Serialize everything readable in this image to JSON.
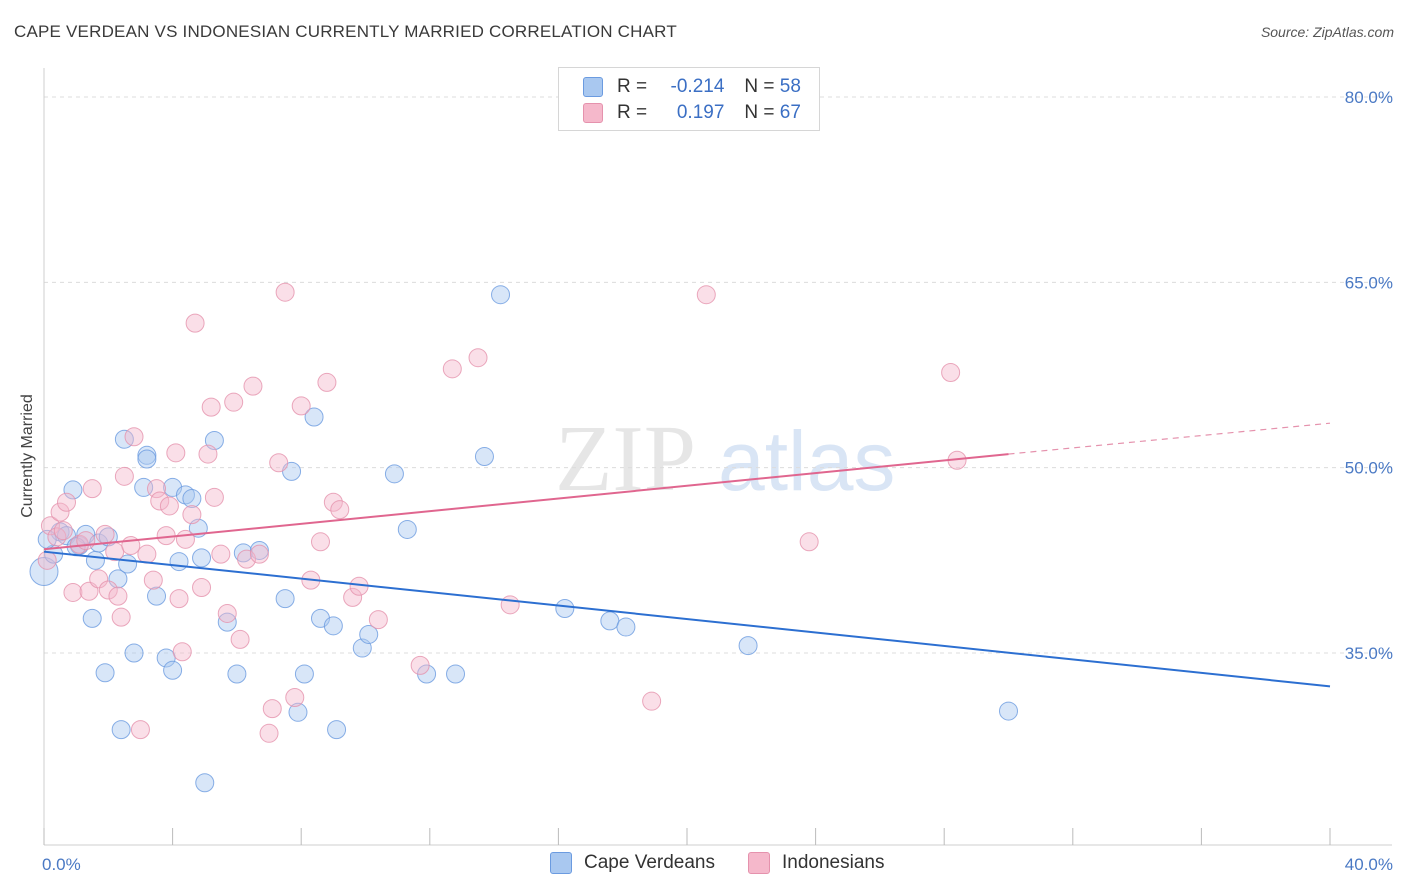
{
  "header": {
    "title": "CAPE VERDEAN VS INDONESIAN CURRENTLY MARRIED CORRELATION CHART",
    "source": "Source: ZipAtlas.com"
  },
  "watermark": {
    "part1": "ZIP",
    "part2": "atlas"
  },
  "legend_top": {
    "rows": [
      {
        "r_label": "R =",
        "r_value": "-0.214",
        "n_label": "N =",
        "n_value": "58",
        "color": "#a9c8f0"
      },
      {
        "r_label": "R =",
        "r_value": "0.197",
        "n_label": "N =",
        "n_value": "67",
        "color": "#f5b8cb"
      }
    ]
  },
  "legend_bottom": {
    "items": [
      {
        "label": "Cape Verdeans",
        "color": "#a9c8f0"
      },
      {
        "label": "Indonesians",
        "color": "#f5b8cb"
      }
    ]
  },
  "chart_data": {
    "type": "scatter",
    "title": "CAPE VERDEAN VS INDONESIAN CURRENTLY MARRIED CORRELATION CHART",
    "xlabel": "",
    "ylabel": "Currently Married",
    "xlim": [
      0,
      40
    ],
    "ylim": [
      22,
      82
    ],
    "x_tick_labels": [
      {
        "value": 0,
        "label": "0.0%"
      },
      {
        "value": 40,
        "label": "40.0%"
      }
    ],
    "y_tick_labels": [
      {
        "value": 80,
        "label": "80.0%"
      },
      {
        "value": 65,
        "label": "65.0%"
      },
      {
        "value": 50,
        "label": "50.0%"
      },
      {
        "value": 35,
        "label": "35.0%"
      }
    ],
    "grid": true,
    "legend_position": "top-center",
    "series": [
      {
        "name": "Cape Verdeans",
        "color": "#6b9be0",
        "fill": "#a9c8f0",
        "trend": {
          "x": [
            0,
            40
          ],
          "y": [
            43.2,
            32.3
          ]
        },
        "points": [
          [
            0.0,
            41.6
          ],
          [
            0.3,
            43.0
          ],
          [
            0.5,
            44.8
          ],
          [
            0.7,
            44.5
          ],
          [
            0.9,
            48.2
          ],
          [
            1.1,
            43.7
          ],
          [
            1.3,
            44.6
          ],
          [
            1.5,
            37.8
          ],
          [
            1.6,
            42.5
          ],
          [
            1.7,
            43.9
          ],
          [
            1.9,
            33.4
          ],
          [
            2.0,
            44.4
          ],
          [
            2.3,
            41.0
          ],
          [
            2.4,
            28.8
          ],
          [
            2.5,
            52.3
          ],
          [
            2.6,
            42.2
          ],
          [
            2.8,
            35.0
          ],
          [
            3.1,
            48.4
          ],
          [
            3.2,
            51.0
          ],
          [
            3.2,
            50.7
          ],
          [
            3.5,
            39.6
          ],
          [
            3.8,
            34.6
          ],
          [
            4.0,
            48.4
          ],
          [
            4.0,
            33.6
          ],
          [
            4.2,
            42.4
          ],
          [
            4.4,
            47.8
          ],
          [
            4.6,
            47.5
          ],
          [
            4.8,
            45.1
          ],
          [
            4.9,
            42.7
          ],
          [
            5.0,
            24.5
          ],
          [
            5.3,
            52.2
          ],
          [
            5.7,
            37.5
          ],
          [
            6.0,
            33.3
          ],
          [
            6.2,
            43.1
          ],
          [
            6.7,
            43.3
          ],
          [
            7.5,
            39.4
          ],
          [
            7.7,
            49.7
          ],
          [
            7.9,
            30.2
          ],
          [
            8.1,
            33.3
          ],
          [
            8.4,
            54.1
          ],
          [
            8.6,
            37.8
          ],
          [
            9.0,
            37.2
          ],
          [
            9.1,
            28.8
          ],
          [
            9.9,
            35.4
          ],
          [
            10.1,
            36.5
          ],
          [
            10.9,
            49.5
          ],
          [
            11.3,
            45.0
          ],
          [
            11.9,
            33.3
          ],
          [
            12.8,
            33.3
          ],
          [
            13.7,
            50.9
          ],
          [
            14.2,
            64.0
          ],
          [
            16.2,
            38.6
          ],
          [
            17.6,
            37.6
          ],
          [
            18.1,
            37.1
          ],
          [
            21.9,
            35.6
          ],
          [
            30.0,
            30.3
          ],
          [
            0.1,
            44.2
          ],
          [
            1.0,
            43.6
          ]
        ]
      },
      {
        "name": "Indonesians",
        "color": "#e592ad",
        "fill": "#f5b8cb",
        "trend": {
          "x": [
            0,
            30
          ],
          "y": [
            43.4,
            51.1
          ]
        },
        "trend_dashed": {
          "x": [
            30,
            40
          ],
          "y": [
            51.1,
            53.6
          ]
        },
        "points": [
          [
            0.1,
            42.5
          ],
          [
            0.2,
            45.3
          ],
          [
            0.4,
            44.4
          ],
          [
            0.5,
            46.4
          ],
          [
            0.6,
            44.9
          ],
          [
            0.7,
            47.2
          ],
          [
            0.9,
            39.9
          ],
          [
            1.1,
            43.8
          ],
          [
            1.3,
            44.1
          ],
          [
            1.4,
            40.0
          ],
          [
            1.5,
            48.3
          ],
          [
            1.7,
            41.0
          ],
          [
            1.9,
            44.6
          ],
          [
            2.0,
            40.1
          ],
          [
            2.2,
            43.2
          ],
          [
            2.3,
            39.6
          ],
          [
            2.4,
            37.9
          ],
          [
            2.5,
            49.3
          ],
          [
            2.7,
            43.7
          ],
          [
            2.8,
            52.5
          ],
          [
            3.0,
            28.8
          ],
          [
            3.2,
            43.0
          ],
          [
            3.4,
            40.9
          ],
          [
            3.5,
            48.3
          ],
          [
            3.6,
            47.3
          ],
          [
            3.8,
            44.5
          ],
          [
            3.9,
            46.9
          ],
          [
            4.1,
            51.2
          ],
          [
            4.2,
            39.4
          ],
          [
            4.3,
            35.1
          ],
          [
            4.4,
            44.2
          ],
          [
            4.6,
            46.2
          ],
          [
            4.7,
            61.7
          ],
          [
            4.9,
            40.3
          ],
          [
            5.1,
            51.1
          ],
          [
            5.2,
            54.9
          ],
          [
            5.3,
            47.6
          ],
          [
            5.5,
            43.0
          ],
          [
            5.7,
            38.2
          ],
          [
            5.9,
            55.3
          ],
          [
            6.1,
            36.1
          ],
          [
            6.3,
            42.6
          ],
          [
            6.5,
            56.6
          ],
          [
            6.7,
            43.0
          ],
          [
            7.0,
            28.5
          ],
          [
            7.1,
            30.5
          ],
          [
            7.3,
            50.4
          ],
          [
            7.5,
            64.2
          ],
          [
            7.8,
            31.4
          ],
          [
            8.0,
            55.0
          ],
          [
            8.3,
            40.9
          ],
          [
            8.6,
            44.0
          ],
          [
            8.8,
            56.9
          ],
          [
            9.0,
            47.2
          ],
          [
            9.2,
            46.6
          ],
          [
            9.6,
            39.5
          ],
          [
            9.8,
            40.4
          ],
          [
            10.4,
            37.7
          ],
          [
            11.7,
            34.0
          ],
          [
            12.7,
            58.0
          ],
          [
            13.5,
            58.9
          ],
          [
            14.5,
            38.9
          ],
          [
            18.9,
            31.1
          ],
          [
            20.6,
            64.0
          ],
          [
            23.8,
            44.0
          ],
          [
            28.2,
            57.7
          ],
          [
            28.4,
            50.6
          ]
        ]
      }
    ]
  }
}
